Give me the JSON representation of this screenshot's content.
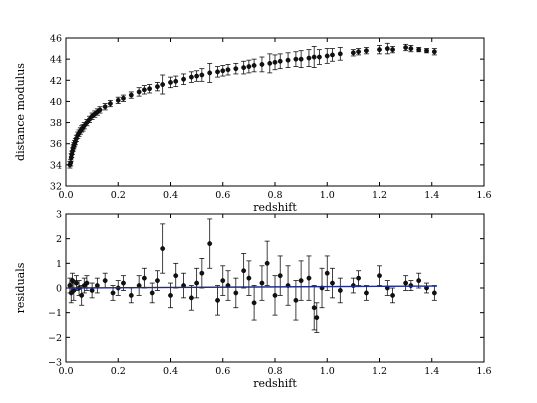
{
  "chart_data": [
    {
      "type": "scatter",
      "xlabel": "redshift",
      "ylabel": "distance modulus",
      "xlim": [
        0.0,
        1.6
      ],
      "ylim": [
        32,
        46
      ],
      "xticks": [
        "0.0",
        "0.2",
        "0.4",
        "0.6",
        "0.8",
        "1.0",
        "1.2",
        "1.4",
        "1.6"
      ],
      "yticks": [
        "32",
        "34",
        "36",
        "38",
        "40",
        "42",
        "44",
        "46"
      ],
      "grid": false,
      "marker_color": "#111111",
      "series": [
        {
          "x": [
            0.015,
            0.018,
            0.02,
            0.022,
            0.025,
            0.028,
            0.03,
            0.033,
            0.036,
            0.04,
            0.045,
            0.05,
            0.055,
            0.06,
            0.065,
            0.07,
            0.08,
            0.09,
            0.1,
            0.11,
            0.12,
            0.13,
            0.15,
            0.17,
            0.2,
            0.22,
            0.25,
            0.28,
            0.3,
            0.32,
            0.35,
            0.37,
            0.4,
            0.42,
            0.45,
            0.48,
            0.5,
            0.52,
            0.55,
            0.58,
            0.6,
            0.62,
            0.65,
            0.68,
            0.7,
            0.72,
            0.75,
            0.78,
            0.8,
            0.82,
            0.85,
            0.88,
            0.9,
            0.93,
            0.95,
            0.97,
            1.0,
            1.02,
            1.05,
            1.1,
            1.12,
            1.15,
            1.2,
            1.23,
            1.25,
            1.3,
            1.32,
            1.35,
            1.38,
            1.41
          ],
          "y": [
            34.0,
            34.2,
            34.7,
            35.0,
            35.3,
            35.6,
            35.8,
            36.0,
            36.2,
            36.5,
            36.8,
            37.0,
            37.2,
            37.4,
            37.5,
            37.7,
            38.0,
            38.3,
            38.6,
            38.8,
            39.0,
            39.2,
            39.5,
            39.8,
            40.1,
            40.3,
            40.6,
            40.9,
            41.1,
            41.2,
            41.4,
            41.6,
            41.8,
            41.9,
            42.1,
            42.3,
            42.4,
            42.5,
            42.7,
            42.8,
            42.9,
            43.0,
            43.1,
            43.2,
            43.3,
            43.4,
            43.5,
            43.6,
            43.7,
            43.8,
            43.9,
            44.0,
            44.0,
            44.1,
            44.2,
            44.2,
            44.3,
            44.4,
            44.5,
            44.6,
            44.7,
            44.8,
            44.9,
            45.0,
            44.9,
            45.1,
            45.0,
            44.9,
            44.8,
            44.7
          ],
          "err": [
            0.3,
            0.3,
            0.35,
            0.3,
            0.3,
            0.3,
            0.3,
            0.3,
            0.3,
            0.3,
            0.3,
            0.3,
            0.3,
            0.3,
            0.3,
            0.3,
            0.3,
            0.3,
            0.3,
            0.3,
            0.3,
            0.3,
            0.3,
            0.3,
            0.3,
            0.3,
            0.3,
            0.4,
            0.4,
            0.4,
            0.4,
            0.9,
            0.5,
            0.5,
            0.5,
            0.5,
            0.5,
            0.6,
            0.9,
            0.5,
            0.5,
            0.5,
            0.5,
            0.6,
            0.6,
            0.6,
            0.7,
            0.9,
            0.7,
            0.7,
            0.7,
            0.7,
            0.8,
            0.8,
            1.0,
            0.7,
            0.7,
            0.6,
            0.6,
            0.3,
            0.3,
            0.3,
            0.4,
            0.5,
            0.3,
            0.3,
            0.3,
            0.2,
            0.2,
            0.3
          ]
        }
      ]
    },
    {
      "type": "scatter",
      "xlabel": "redshift",
      "ylabel": "residuals",
      "xlim": [
        0.0,
        1.6
      ],
      "ylim": [
        -3,
        3
      ],
      "xticks": [
        "0.0",
        "0.2",
        "0.4",
        "0.6",
        "0.8",
        "1.0",
        "1.2",
        "1.4",
        "1.6"
      ],
      "yticks": [
        "−3",
        "−2",
        "−1",
        "0",
        "1",
        "2",
        "3"
      ],
      "grid": false,
      "marker_color": "#111111",
      "fit_line_color": "#1f2a8c",
      "fit_line": {
        "x": [
          0.01,
          1.42
        ],
        "y": [
          0.0,
          0.08
        ]
      },
      "series": [
        {
          "x": [
            0.015,
            0.02,
            0.025,
            0.03,
            0.04,
            0.05,
            0.06,
            0.07,
            0.08,
            0.1,
            0.12,
            0.15,
            0.18,
            0.2,
            0.22,
            0.25,
            0.28,
            0.3,
            0.33,
            0.35,
            0.37,
            0.4,
            0.42,
            0.45,
            0.48,
            0.5,
            0.52,
            0.55,
            0.58,
            0.6,
            0.62,
            0.65,
            0.68,
            0.7,
            0.72,
            0.75,
            0.77,
            0.8,
            0.82,
            0.85,
            0.88,
            0.9,
            0.93,
            0.95,
            0.96,
            0.98,
            1.0,
            1.02,
            1.05,
            1.1,
            1.12,
            1.15,
            1.2,
            1.23,
            1.25,
            1.3,
            1.32,
            1.35,
            1.38,
            1.41
          ],
          "y": [
            0.1,
            -0.2,
            0.3,
            -0.1,
            0.2,
            0.0,
            -0.3,
            0.1,
            0.2,
            -0.1,
            0.1,
            0.3,
            -0.2,
            0.0,
            0.2,
            -0.3,
            0.1,
            0.4,
            -0.2,
            0.3,
            1.6,
            -0.3,
            0.5,
            0.1,
            -0.4,
            0.2,
            0.6,
            1.8,
            -0.5,
            0.3,
            0.1,
            -0.2,
            0.7,
            0.4,
            -0.6,
            0.2,
            1.0,
            -0.3,
            0.5,
            0.1,
            -0.5,
            0.3,
            0.4,
            -0.8,
            -1.2,
            0.0,
            0.6,
            0.2,
            -0.1,
            0.1,
            0.4,
            -0.2,
            0.5,
            0.0,
            -0.3,
            0.2,
            0.1,
            0.3,
            0.0,
            -0.2
          ],
          "err": [
            0.3,
            0.4,
            0.3,
            0.4,
            0.3,
            0.3,
            0.4,
            0.3,
            0.3,
            0.3,
            0.3,
            0.3,
            0.3,
            0.3,
            0.3,
            0.3,
            0.4,
            0.4,
            0.4,
            0.4,
            1.0,
            0.5,
            0.5,
            0.5,
            0.5,
            0.6,
            0.6,
            1.0,
            0.6,
            0.6,
            0.6,
            0.6,
            0.7,
            0.7,
            0.7,
            0.7,
            0.9,
            0.8,
            0.8,
            0.8,
            0.8,
            0.8,
            0.9,
            0.9,
            0.6,
            0.8,
            0.7,
            0.6,
            0.5,
            0.3,
            0.3,
            0.3,
            0.4,
            0.3,
            0.3,
            0.3,
            0.2,
            0.3,
            0.2,
            0.3
          ]
        }
      ]
    }
  ]
}
